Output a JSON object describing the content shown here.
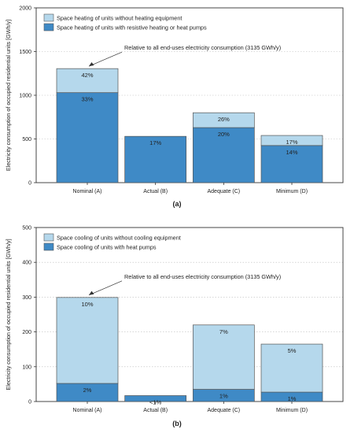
{
  "chart_data": [
    {
      "id": "a",
      "type": "bar",
      "stacked": true,
      "caption": "(a)",
      "ylabel": "Electricity consumption of occupied residential units [GWh/y]",
      "ylim": [
        0,
        2000
      ],
      "yticks": [
        0,
        500,
        1000,
        1500,
        2000
      ],
      "grid": "horizontal dotted",
      "legend_position": "top-left",
      "categories": [
        "Nominal (A)",
        "Actual (B)",
        "Adequate (C)",
        "Minimum (D)"
      ],
      "series": [
        {
          "name": "Space heating of units with resistive heating or heat pumps",
          "color": "#3f8ac6",
          "values": [
            1030,
            530,
            630,
            425
          ],
          "labels": [
            "33%",
            "17%",
            "20%",
            "14%"
          ]
        },
        {
          "name": "Space heating of units without heating equipment",
          "color": "#b5d8ec",
          "values": [
            275,
            0,
            170,
            115
          ],
          "labels": [
            "42%",
            "",
            "26%",
            "17%"
          ]
        }
      ],
      "annotation": {
        "text": "Relative to all end-uses electricity consumption (3135 GWh/y)",
        "category_index": 0
      }
    },
    {
      "id": "b",
      "type": "bar",
      "stacked": true,
      "caption": "(b)",
      "ylabel": "Electricity consumption of occupied residential units [GWh/y]",
      "ylim": [
        0,
        500
      ],
      "yticks": [
        0,
        100,
        200,
        300,
        400,
        500
      ],
      "grid": "horizontal dotted",
      "legend_position": "top-left",
      "categories": [
        "Nominal (A)",
        "Actual (B)",
        "Adequate (C)",
        "Minimum (D)"
      ],
      "series": [
        {
          "name": "Space cooling of units with heat pumps",
          "color": "#3f8ac6",
          "values": [
            52,
            17,
            35,
            27
          ],
          "labels": [
            "2%",
            "<1%",
            "1%",
            "1%"
          ]
        },
        {
          "name": "Space cooling of units without cooling equipment",
          "color": "#b5d8ec",
          "values": [
            247,
            0,
            185,
            138
          ],
          "labels": [
            "10%",
            "",
            "7%",
            "5%"
          ]
        }
      ],
      "annotation": {
        "text": "Relative to all end-uses electricity consumption (3135 GWh/y)",
        "category_index": 0
      }
    }
  ]
}
